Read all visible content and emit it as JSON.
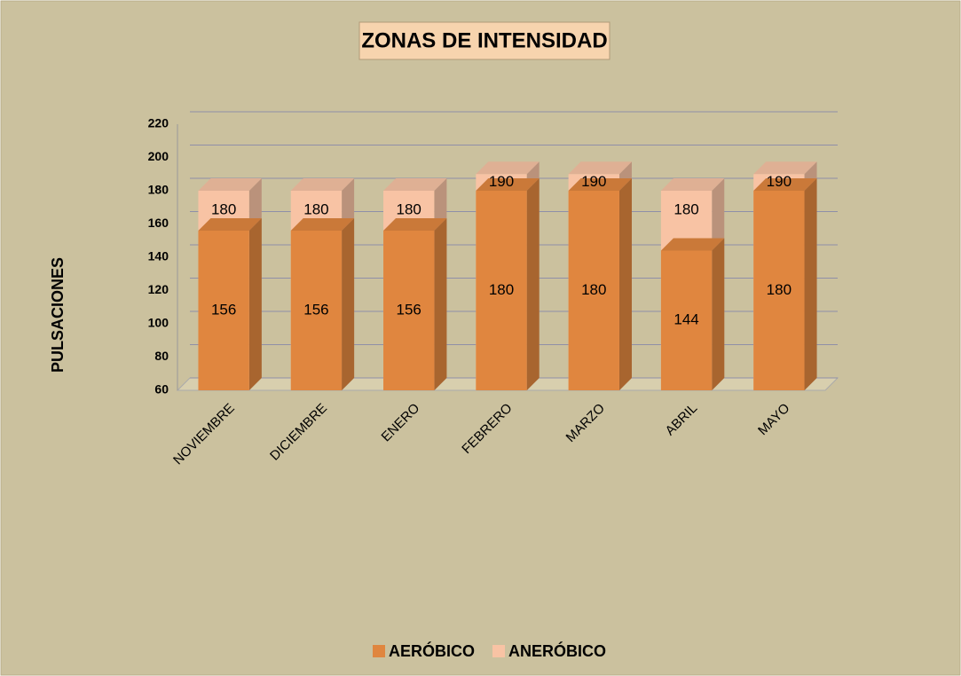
{
  "chart_data": {
    "type": "bar",
    "overlap": true,
    "title": "ZONAS DE INTENSIDAD",
    "y_label": "PULSACIONES",
    "categories": [
      "NOVIEMBRE",
      "DICIEMBRE",
      "ENERO",
      "FEBRERO",
      "MARZO",
      "ABRIL",
      "MAYO"
    ],
    "series": [
      {
        "name": "AERÓBICO",
        "color": "#e0863f",
        "values": [
          156,
          156,
          156,
          180,
          180,
          144,
          180
        ]
      },
      {
        "name": "ANERÓBICO",
        "color": "#f8c3a4",
        "values": [
          180,
          180,
          180,
          190,
          190,
          180,
          190
        ]
      }
    ],
    "ylim": [
      60,
      220
    ],
    "yticks": [
      60,
      80,
      100,
      120,
      140,
      160,
      180,
      200,
      220
    ],
    "grid": true,
    "legend": "bottom"
  }
}
